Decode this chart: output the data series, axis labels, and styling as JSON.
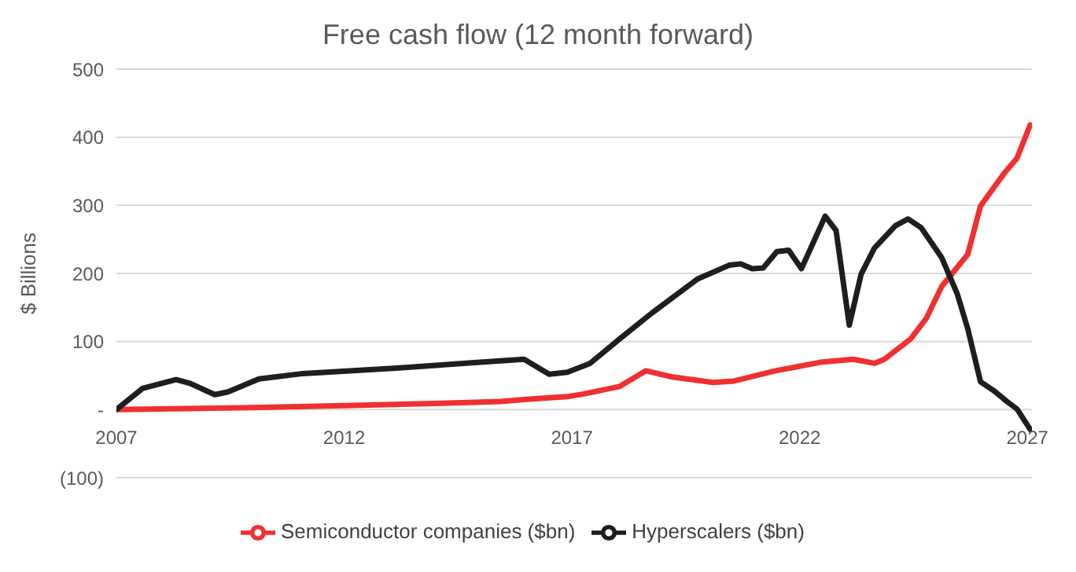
{
  "chart_data": {
    "type": "line",
    "title": "Free cash flow (12 month forward)",
    "ylabel": "$ Billions",
    "xlim": [
      2007,
      2027.1
    ],
    "xticks": [
      2007,
      2012,
      2017,
      2022,
      2027
    ],
    "ylim": [
      -100,
      500
    ],
    "yticks": [
      {
        "value": -100,
        "label": "(100)"
      },
      {
        "value": 0,
        "label": "-"
      },
      100,
      200,
      300,
      400,
      500
    ],
    "grid": "y",
    "legend": "bottom",
    "line_style": "solid",
    "marker": "none",
    "series": [
      {
        "name": "Semiconductor companies ($bn)",
        "color": "#f03030",
        "x": [
          2007,
          2010,
          2012,
          2014,
          2015.43,
          2016,
          2016.9,
          2017.26,
          2018.05,
          2018.62,
          2019.2,
          2020.1,
          2020.56,
          2021.47,
          2022.5,
          2023.18,
          2023.64,
          2023.86,
          2024.44,
          2024.78,
          2025.12,
          2025.69,
          2025.97,
          2026.49,
          2026.77,
          2027.06
        ],
        "values": [
          0,
          3,
          6,
          9,
          12,
          15,
          19,
          23,
          34,
          57,
          48,
          40,
          42,
          57,
          70,
          74,
          68,
          74,
          104,
          134,
          181,
          228,
          299,
          347,
          369,
          418
        ]
      },
      {
        "name": "Hyperscalers ($bn)",
        "color": "#1e1e1e",
        "x": [
          2007,
          2007.57,
          2008.31,
          2008.6,
          2009.16,
          2009.45,
          2010.13,
          2011.1,
          2013.15,
          2014.86,
          2015.95,
          2016.5,
          2016.9,
          2017.4,
          2018.05,
          2018.74,
          2019.76,
          2020.45,
          2020.7,
          2020.96,
          2021.2,
          2021.5,
          2021.76,
          2022.04,
          2022.56,
          2022.8,
          2023.09,
          2023.35,
          2023.64,
          2024.1,
          2024.38,
          2024.67,
          2025.12,
          2025.46,
          2025.69,
          2025.97,
          2026.26,
          2026.55,
          2026.77,
          2027.06
        ],
        "values": [
          0,
          31,
          44,
          39,
          22,
          26,
          45,
          53,
          61,
          69,
          74,
          52,
          55,
          68,
          104,
          141,
          192,
          212,
          214,
          207,
          208,
          232,
          234,
          207,
          284,
          263,
          124,
          199,
          237,
          270,
          280,
          267,
          223,
          170,
          119,
          41,
          28,
          12,
          1,
          -29
        ]
      }
    ]
  }
}
